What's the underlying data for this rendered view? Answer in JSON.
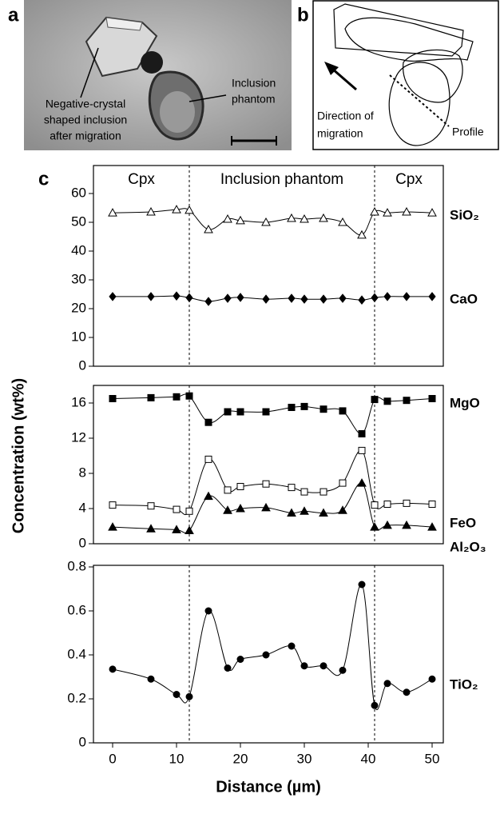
{
  "panel_a": {
    "label": "a",
    "crystal_label": [
      "Negative-crystal",
      "shaped inclusion",
      "after migration"
    ],
    "phantom_label": [
      "Inclusion",
      "phantom"
    ]
  },
  "panel_b": {
    "label": "b",
    "direction_label": [
      "Direction of",
      "migration"
    ],
    "profile_label": "Profile"
  },
  "panel_c_label": "c",
  "chart_data": [
    {
      "type": "line",
      "regions": [
        "Cpx",
        "Inclusion phantom",
        "Cpx"
      ],
      "boundaries": [
        12,
        41
      ],
      "xlim": [
        -3,
        51.75
      ],
      "x": [
        0,
        6,
        10,
        12,
        15,
        18,
        20,
        24,
        28,
        30,
        33,
        36,
        39,
        41,
        43,
        46,
        50
      ],
      "ylim": [
        0,
        60
      ],
      "yticks": [
        0,
        10,
        20,
        30,
        40,
        50,
        60
      ],
      "series": [
        {
          "name": "SiO₂",
          "color": "#000000",
          "marker": "triangle-open",
          "values": [
            53.3,
            53.6,
            54.4,
            54.2,
            47.5,
            51.1,
            50.6,
            50,
            51.4,
            51.1,
            51.4,
            50,
            45.6,
            53.6,
            53.3,
            53.6,
            53.3
          ]
        },
        {
          "name": "CaO",
          "color": "#000000",
          "marker": "diamond",
          "values": [
            24.2,
            24.2,
            24.4,
            23.8,
            22.5,
            23.6,
            23.9,
            23.3,
            23.6,
            23.3,
            23.3,
            23.6,
            23,
            23.8,
            24.2,
            24.2,
            24.2
          ]
        }
      ]
    },
    {
      "type": "line",
      "boundaries": [
        12,
        41
      ],
      "ylabel": "Concentration (wt%)",
      "xlim": [
        -3,
        51.75
      ],
      "x": [
        0,
        6,
        10,
        12,
        15,
        18,
        20,
        24,
        28,
        30,
        33,
        36,
        39,
        41,
        43,
        46,
        50
      ],
      "ylim": [
        0,
        18
      ],
      "yticks": [
        0,
        4,
        8,
        12,
        16
      ],
      "series": [
        {
          "name": "MgO",
          "color": "#000000",
          "marker": "square",
          "values": [
            16.5,
            16.6,
            16.7,
            16.8,
            13.8,
            15,
            15,
            15,
            15.5,
            15.6,
            15.3,
            15.1,
            12.5,
            16.4,
            16.2,
            16.3,
            16.5
          ]
        },
        {
          "name": "FeO",
          "color": "#000000",
          "marker": "square-open",
          "values": [
            4.4,
            4.3,
            3.9,
            3.7,
            9.6,
            6.1,
            6.5,
            6.8,
            6.4,
            5.9,
            5.9,
            6.9,
            10.6,
            4.4,
            4.5,
            4.6,
            4.5
          ]
        },
        {
          "name": "Al₂O₃",
          "color": "#000000",
          "marker": "triangle",
          "values": [
            1.9,
            1.7,
            1.6,
            1.5,
            5.4,
            3.8,
            4,
            4.1,
            3.5,
            3.7,
            3.5,
            3.8,
            6.9,
            1.9,
            2.1,
            2.1,
            1.9
          ]
        }
      ]
    },
    {
      "type": "line",
      "boundaries": [
        12,
        41
      ],
      "xlabel": "Distance (µm)",
      "xlim": [
        -3,
        51.75
      ],
      "xticks": [
        0,
        10,
        20,
        30,
        40,
        50
      ],
      "x": [
        0,
        6,
        10,
        12,
        15,
        18,
        20,
        24,
        28,
        30,
        33,
        36,
        39,
        41,
        43,
        46,
        50
      ],
      "ylim": [
        0,
        0.8
      ],
      "yticks": [
        0,
        0.2,
        0.4,
        0.6,
        0.8
      ],
      "series": [
        {
          "name": "TiO₂",
          "color": "#000000",
          "marker": "circle",
          "values": [
            0.335,
            0.29,
            0.22,
            0.21,
            0.6,
            0.34,
            0.38,
            0.4,
            0.44,
            0.35,
            0.35,
            0.33,
            0.72,
            0.17,
            0.27,
            0.23,
            0.29
          ]
        }
      ]
    }
  ]
}
